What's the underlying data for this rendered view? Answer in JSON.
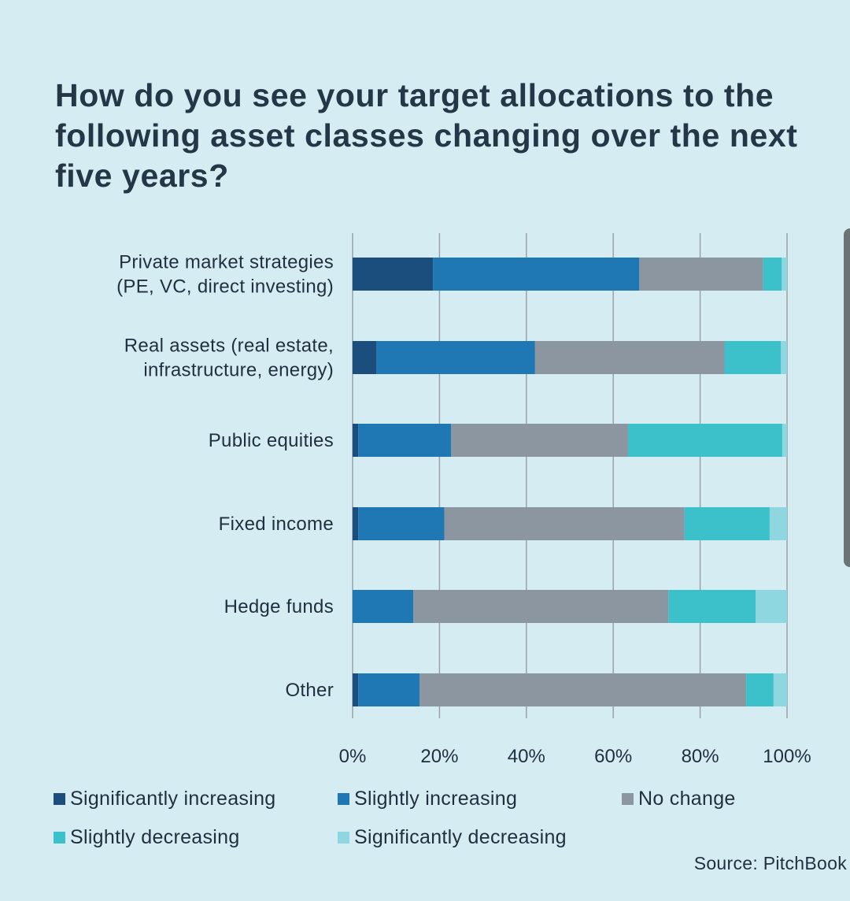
{
  "title": "How do you see your target allocations to the following asset classes changing over the next five years?",
  "source": "Source: PitchBook",
  "colors": {
    "significantly_increasing": "#1b4e7d",
    "slightly_increasing": "#1f77b4",
    "no_change": "#8c96a1",
    "slightly_decreasing": "#3cc0ca",
    "significantly_decreasing": "#8ed6e0",
    "grid": "#9aa3a8",
    "background": "#d5ecf2"
  },
  "legend": [
    {
      "label": "Significantly increasing",
      "color": "#1b4e7d"
    },
    {
      "label": "Slightly increasing",
      "color": "#1f77b4"
    },
    {
      "label": "No change",
      "color": "#8c96a1"
    },
    {
      "label": "Slightly decreasing",
      "color": "#3cc0ca"
    },
    {
      "label": "Significantly decreasing",
      "color": "#8ed6e0"
    }
  ],
  "chart_data": {
    "type": "bar",
    "orientation": "horizontal",
    "stacked": true,
    "title": "How do you see your target allocations to the following asset classes changing over the next five years?",
    "categories": [
      [
        "Private market strategies",
        "(PE, VC, direct investing)"
      ],
      [
        "Real assets (real estate,",
        "infrastructure, energy)"
      ],
      [
        "Public equities"
      ],
      [
        "Fixed income"
      ],
      [
        "Hedge funds"
      ],
      [
        "Other"
      ]
    ],
    "series": [
      {
        "name": "Significantly increasing",
        "values": [
          18.5,
          5.5,
          1.3,
          1.3,
          0.0,
          1.3
        ]
      },
      {
        "name": "Slightly increasing",
        "values": [
          47.5,
          36.5,
          21.4,
          19.8,
          14.0,
          14.1
        ]
      },
      {
        "name": "No change",
        "values": [
          28.5,
          43.6,
          40.7,
          55.3,
          58.7,
          75.2
        ]
      },
      {
        "name": "Slightly decreasing",
        "values": [
          4.3,
          13.0,
          35.5,
          19.6,
          20.1,
          6.3
        ]
      },
      {
        "name": "Significantly decreasing",
        "values": [
          1.2,
          1.4,
          1.1,
          4.0,
          7.2,
          3.1
        ]
      }
    ],
    "xlim": [
      0,
      100
    ],
    "xticks": [
      0,
      20,
      40,
      60,
      80,
      100
    ],
    "xtick_labels": [
      "0%",
      "20%",
      "40%",
      "60%",
      "80%",
      "100%"
    ],
    "grid": true,
    "legend_position": "bottom"
  }
}
